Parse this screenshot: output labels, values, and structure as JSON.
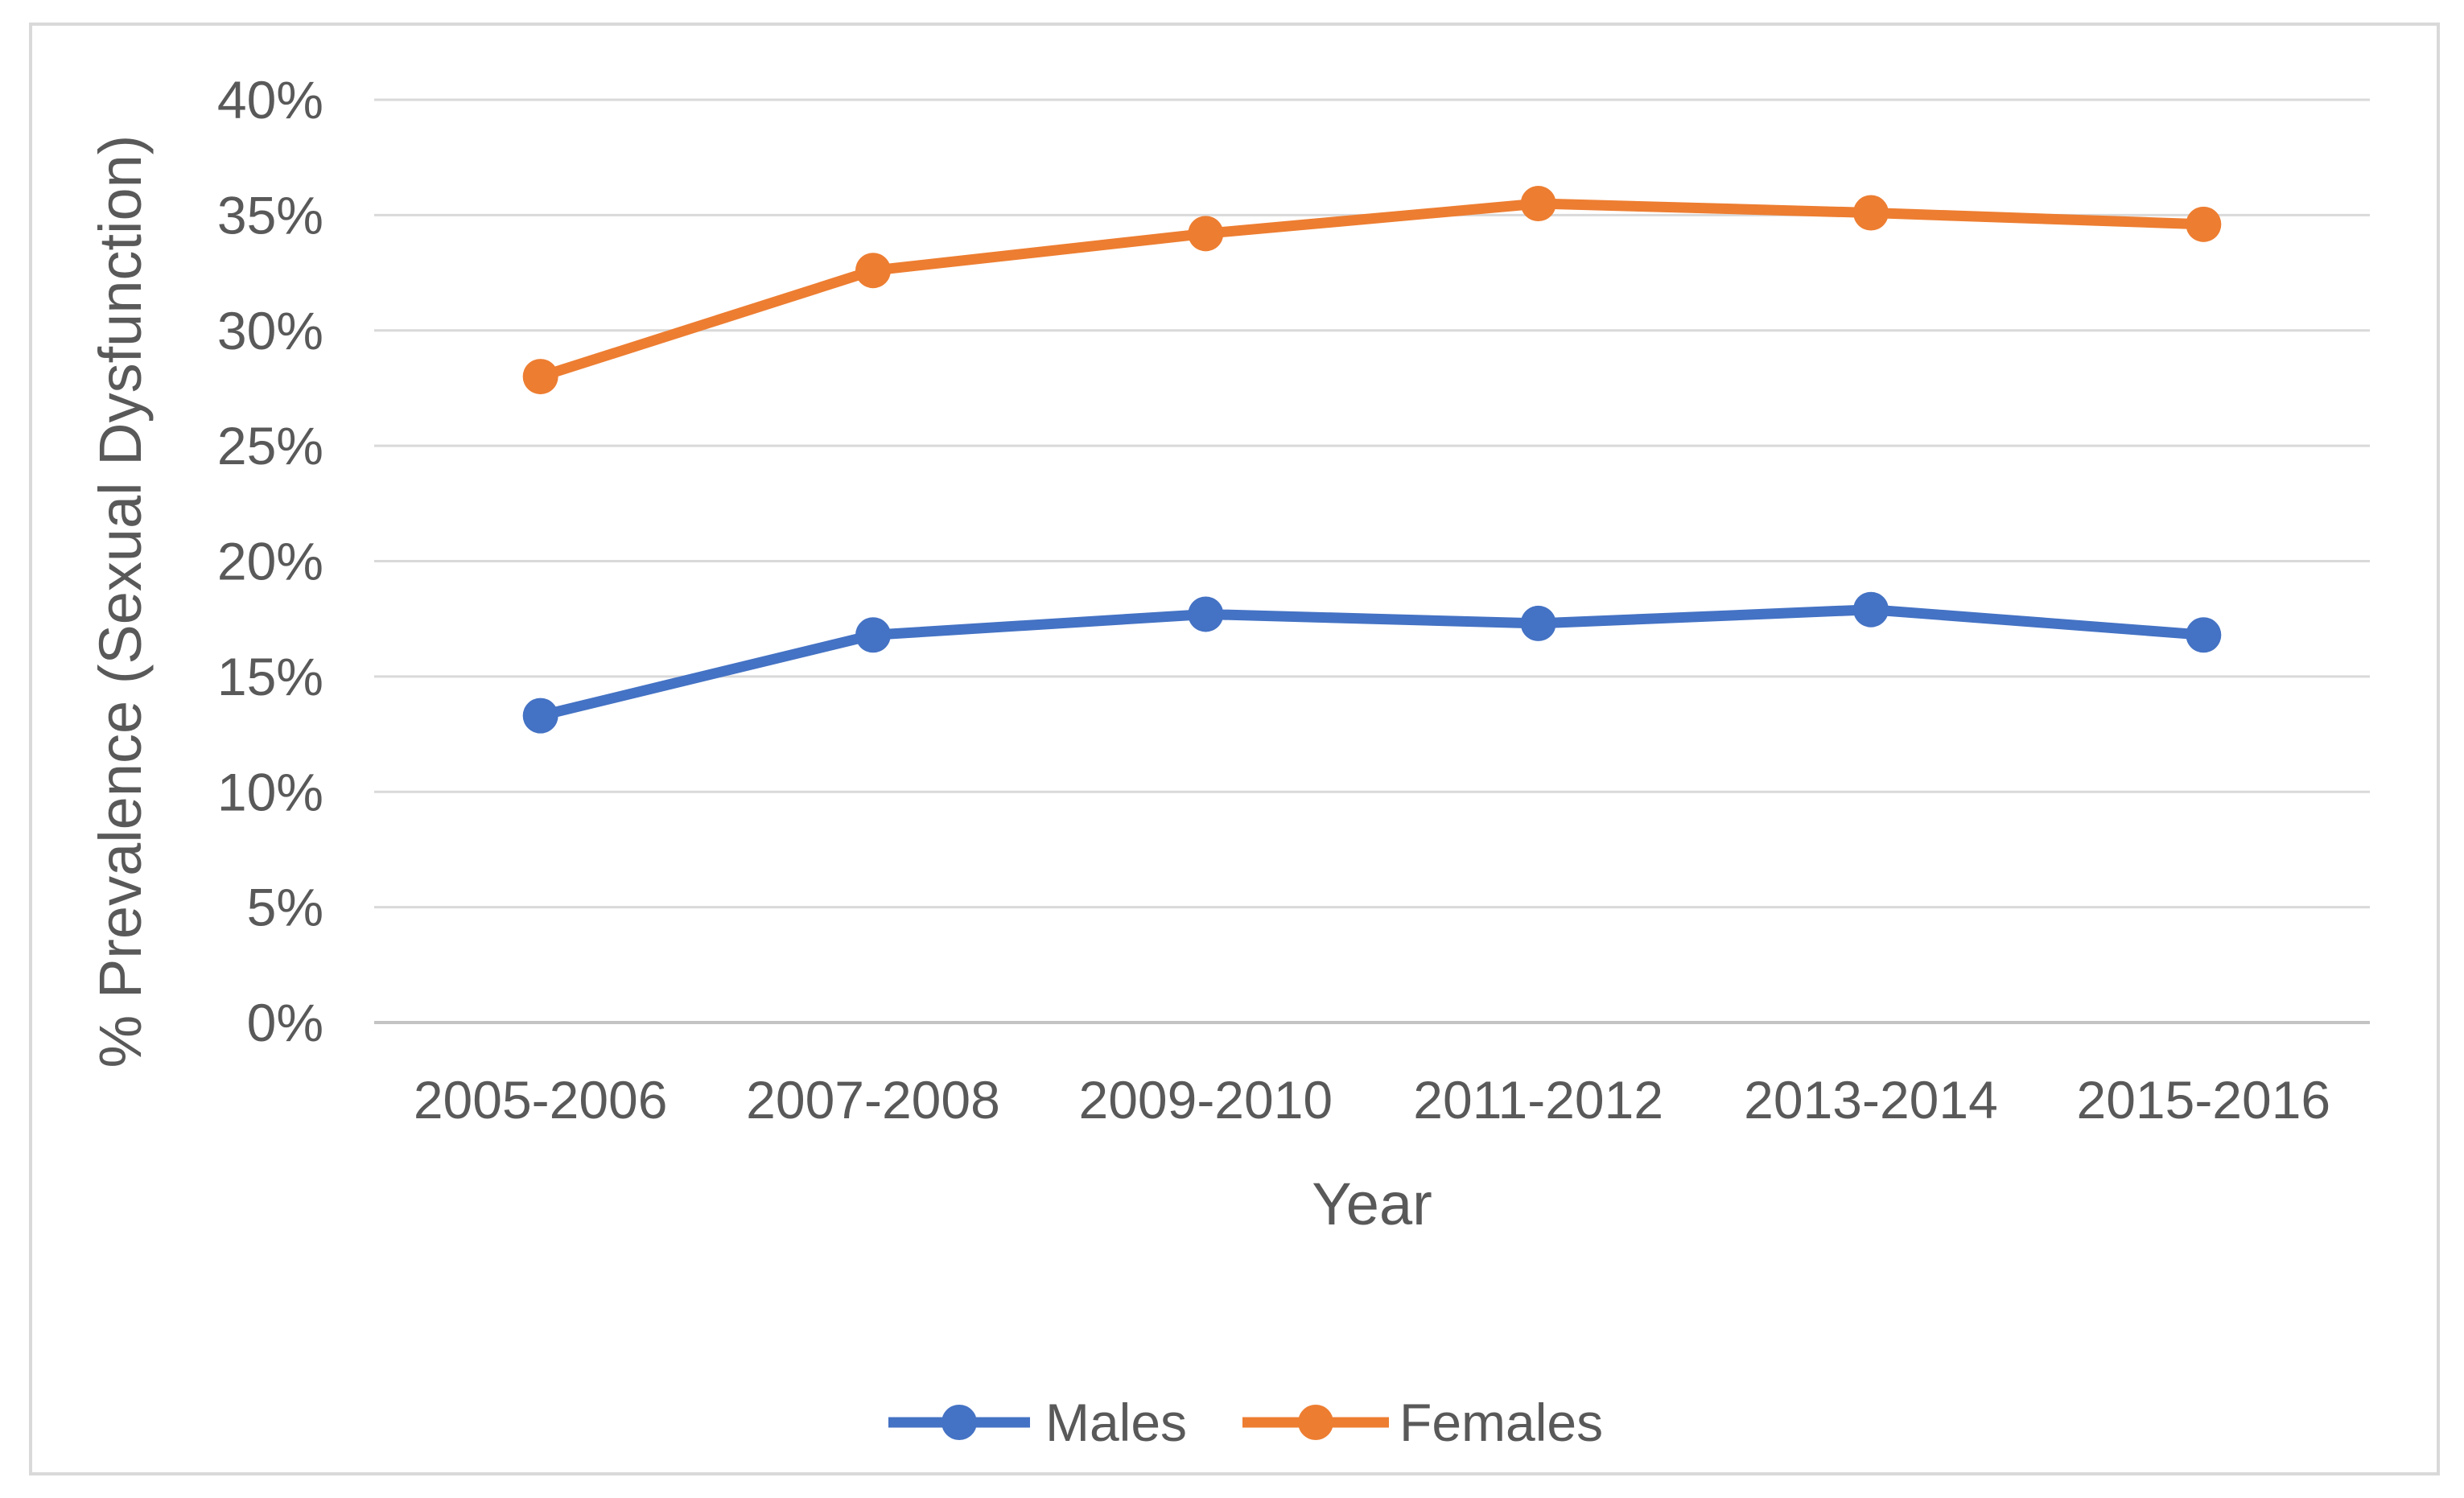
{
  "chart_data": {
    "type": "line",
    "title": "",
    "xlabel": "Year",
    "ylabel": "% Prevalence (Sexual Dysfunction)",
    "categories": [
      "2005-2006",
      "2007-2008",
      "2009-2010",
      "2011-2012",
      "2013-2014",
      "2015-2016"
    ],
    "series": [
      {
        "name": "Males",
        "color": "#4472C4",
        "values": [
          13.3,
          16.8,
          17.7,
          17.3,
          17.9,
          16.8
        ]
      },
      {
        "name": "Females",
        "color": "#ED7D31",
        "values": [
          28.0,
          32.6,
          34.2,
          35.5,
          35.1,
          34.6
        ]
      }
    ],
    "ylim": [
      0,
      40
    ],
    "ytick_step": 5,
    "ytick_labels": [
      "0%",
      "5%",
      "10%",
      "15%",
      "20%",
      "25%",
      "30%",
      "35%",
      "40%"
    ],
    "grid": true,
    "legend_position": "bottom",
    "marker": "circle"
  },
  "style": {
    "gridline_color": "#D9D9D9",
    "axis_line_color": "#C3C3C3",
    "text_color": "#595959",
    "border_color": "#D9D9D9",
    "background": "#FFFFFF"
  }
}
